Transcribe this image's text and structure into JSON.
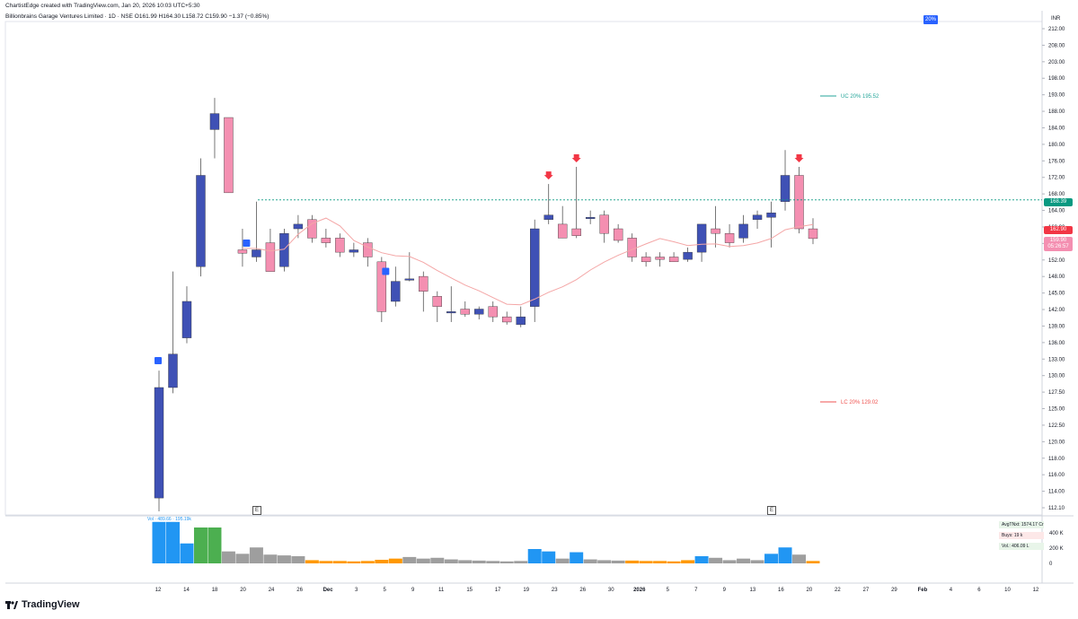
{
  "header": {
    "created_line": "ChartistEdge created with TradingView.com, Jan 20, 2026 10:03 UTC+5:30",
    "symbol_line": "Billionbrains Garage Ventures Limited · 1D · NSE  O161.99  H164.30  L158.72  C159.90  −1.37 (−0.85%)"
  },
  "badge": {
    "label": "20%",
    "color": "#2962ff"
  },
  "currency": "INR",
  "circuit": {
    "uc": {
      "label": "UC",
      "pct": "20%",
      "value": 195.52,
      "text": "195.52",
      "color": "#26a69a"
    },
    "lc": {
      "label": "LC",
      "pct": "20%",
      "value": 129.02,
      "text": "129.02",
      "color": "#ef5350"
    }
  },
  "price_tags": {
    "level": {
      "text": "168.39",
      "value": 168.39,
      "color": "#089981"
    },
    "high_tag": {
      "text": "162.90",
      "value": 162.9,
      "color": "#f23645"
    },
    "last": {
      "text": "159.90",
      "sub": "05:26:57",
      "value": 159.9,
      "color": "#f48fb1"
    }
  },
  "volume_info": {
    "avg": "AvgTNxt: 1574.17 Cr",
    "buy": "Buys: 19 k",
    "vol": "Vol.: 406.09 L",
    "legend": "Vol · 489.66 · 195.19k"
  },
  "x_labels": [
    "12",
    "14",
    "18",
    "20",
    "24",
    "26",
    "Dec",
    "3",
    "5",
    "9",
    "11",
    "15",
    "17",
    "19",
    "23",
    "26",
    "30",
    "2026",
    "5",
    "7",
    "9",
    "13",
    "16",
    "20",
    "22",
    "27",
    "29",
    "Feb",
    "4",
    "6",
    "10",
    "12"
  ],
  "y_labels": [
    "212.00",
    "208.00",
    "203.00",
    "198.00",
    "193.00",
    "188.00",
    "184.00",
    "180.00",
    "176.00",
    "172.00",
    "168.00",
    "164.00",
    "160.00",
    "156.00",
    "152.00",
    "148.00",
    "145.00",
    "142.00",
    "139.00",
    "136.00",
    "133.00",
    "130.00",
    "127.50",
    "125.00",
    "122.50",
    "120.00",
    "118.00",
    "116.00",
    "114.00",
    "112.10"
  ],
  "vol_labels": [
    "400 K",
    "200 K",
    "0"
  ],
  "earnings_marker": "E",
  "logo_text": "TradingView",
  "chart_data": {
    "type": "candlestick",
    "ylim": [
      111,
      213
    ],
    "y_scale": "log",
    "bull_color": "#3f51b5",
    "bear_color": "#f48fb1",
    "ma_color": "#f4a6a6",
    "candles": [
      {
        "x": "12",
        "o": 113,
        "h": 134,
        "l": 111,
        "c": 131,
        "v": 520
      },
      {
        "x": "13",
        "o": 131,
        "h": 153,
        "l": 130,
        "c": 137,
        "v": 520
      },
      {
        "x": "14",
        "o": 140,
        "h": 150,
        "l": 139,
        "c": 147,
        "v": 250
      },
      {
        "x": "17",
        "o": 154,
        "h": 178,
        "l": 152,
        "c": 174,
        "v": 450
      },
      {
        "x": "18",
        "o": 185,
        "h": 193,
        "l": 178,
        "c": 189,
        "v": 450
      },
      {
        "x": "19",
        "o": 188,
        "h": 188,
        "l": 170,
        "c": 170,
        "v": 150
      },
      {
        "x": "20",
        "o": 157.5,
        "h": 162,
        "l": 154,
        "c": 156.8,
        "v": 120
      },
      {
        "x": "21",
        "o": 156,
        "h": 168,
        "l": 155,
        "c": 157.5,
        "v": 200
      },
      {
        "x": "24",
        "o": 159,
        "h": 162,
        "l": 153,
        "c": 153,
        "v": 110
      },
      {
        "x": "25",
        "o": 154,
        "h": 162,
        "l": 153,
        "c": 161,
        "v": 100
      },
      {
        "x": "26",
        "o": 162,
        "h": 165,
        "l": 160,
        "c": 163,
        "v": 90
      },
      {
        "x": "27",
        "o": 164,
        "h": 165,
        "l": 159,
        "c": 160,
        "v": 40
      },
      {
        "x": "28",
        "o": 160,
        "h": 162,
        "l": 158,
        "c": 159,
        "v": 30
      },
      {
        "x": "Dec1",
        "o": 160,
        "h": 161,
        "l": 156,
        "c": 157,
        "v": 30
      },
      {
        "x": "Dec2",
        "o": 157,
        "h": 159,
        "l": 156,
        "c": 157.5,
        "v": 25
      },
      {
        "x": "Dec3",
        "o": 159,
        "h": 160,
        "l": 154,
        "c": 156,
        "v": 30
      },
      {
        "x": "Dec4",
        "o": 155,
        "h": 156,
        "l": 143,
        "c": 145,
        "v": 45
      },
      {
        "x": "Dec5",
        "o": 147,
        "h": 154,
        "l": 146,
        "c": 151,
        "v": 60
      },
      {
        "x": "Dec8",
        "o": 151.5,
        "h": 157,
        "l": 151,
        "c": 151.5,
        "v": 80
      },
      {
        "x": "Dec9",
        "o": 152,
        "h": 153,
        "l": 145,
        "c": 149,
        "v": 60
      },
      {
        "x": "Dec10",
        "o": 148,
        "h": 149,
        "l": 143,
        "c": 146,
        "v": 70
      },
      {
        "x": "Dec11",
        "o": 145,
        "h": 150,
        "l": 143,
        "c": 145,
        "v": 50
      },
      {
        "x": "Dec12",
        "o": 145.5,
        "h": 147,
        "l": 144,
        "c": 144.5,
        "v": 40
      },
      {
        "x": "Dec15",
        "o": 144.5,
        "h": 146,
        "l": 143.5,
        "c": 145.5,
        "v": 35
      },
      {
        "x": "Dec16",
        "o": 146,
        "h": 147,
        "l": 143,
        "c": 144,
        "v": 30
      },
      {
        "x": "Dec17",
        "o": 144,
        "h": 145,
        "l": 142.5,
        "c": 143,
        "v": 25
      },
      {
        "x": "Dec18",
        "o": 142.5,
        "h": 146,
        "l": 142,
        "c": 144,
        "v": 30
      },
      {
        "x": "Dec19",
        "o": 146,
        "h": 164,
        "l": 143,
        "c": 162,
        "v": 180
      },
      {
        "x": "Dec22",
        "o": 164,
        "h": 172,
        "l": 163,
        "c": 165,
        "v": 150
      },
      {
        "x": "Dec23",
        "o": 163,
        "h": 167,
        "l": 160,
        "c": 160,
        "v": 60
      },
      {
        "x": "Dec24",
        "o": 162,
        "h": 176,
        "l": 160,
        "c": 160.5,
        "v": 140
      },
      {
        "x": "Dec26",
        "o": 164.5,
        "h": 166,
        "l": 163,
        "c": 164.5,
        "v": 50
      },
      {
        "x": "Dec29",
        "o": 165,
        "h": 166,
        "l": 159,
        "c": 161,
        "v": 40
      },
      {
        "x": "Dec30",
        "o": 162,
        "h": 163,
        "l": 159,
        "c": 159.5,
        "v": 35
      },
      {
        "x": "Dec31",
        "o": 160,
        "h": 161,
        "l": 155,
        "c": 156,
        "v": 35
      },
      {
        "x": "Jan1",
        "o": 156,
        "h": 157,
        "l": 154,
        "c": 155,
        "v": 30
      },
      {
        "x": "Jan2",
        "o": 156,
        "h": 157,
        "l": 154,
        "c": 155.5,
        "v": 30
      },
      {
        "x": "Jan5",
        "o": 156,
        "h": 157,
        "l": 155,
        "c": 155,
        "v": 25
      },
      {
        "x": "Jan6",
        "o": 155.5,
        "h": 158,
        "l": 155,
        "c": 157,
        "v": 40
      },
      {
        "x": "Jan7",
        "o": 157,
        "h": 163,
        "l": 155,
        "c": 163,
        "v": 90
      },
      {
        "x": "Jan8",
        "o": 162,
        "h": 167,
        "l": 158,
        "c": 161,
        "v": 70
      },
      {
        "x": "Jan9",
        "o": 161,
        "h": 163,
        "l": 158,
        "c": 159,
        "v": 40
      },
      {
        "x": "Jan12",
        "o": 160,
        "h": 165,
        "l": 159,
        "c": 163,
        "v": 60
      },
      {
        "x": "Jan13",
        "o": 164,
        "h": 166,
        "l": 162,
        "c": 165,
        "v": 40
      },
      {
        "x": "Jan14",
        "o": 164.5,
        "h": 168,
        "l": 158,
        "c": 165.5,
        "v": 120
      },
      {
        "x": "Jan16",
        "o": 168,
        "h": 180,
        "l": 166,
        "c": 174,
        "v": 200
      },
      {
        "x": "Jan19",
        "o": 174,
        "h": 176,
        "l": 161,
        "c": 162,
        "v": 110
      },
      {
        "x": "Jan20",
        "o": 161.99,
        "h": 164.3,
        "l": 158.72,
        "c": 159.9,
        "v": 30
      }
    ],
    "signals": [
      {
        "x": "20",
        "type": "up-square"
      },
      {
        "x": "Dec4",
        "type": "up-square"
      },
      {
        "x": "Dec22",
        "type": "down-arrow"
      },
      {
        "x": "Dec24",
        "type": "down-arrow"
      },
      {
        "x": "Jan19",
        "type": "down-arrow"
      }
    ]
  }
}
